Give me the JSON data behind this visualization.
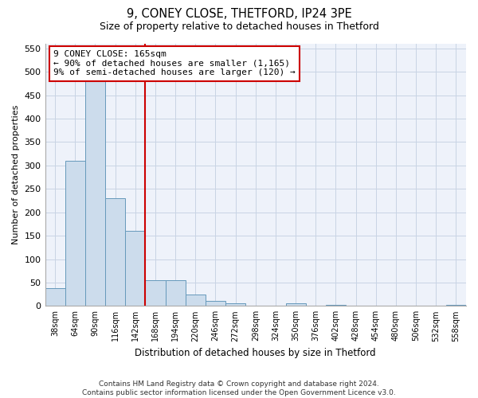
{
  "title1": "9, CONEY CLOSE, THETFORD, IP24 3PE",
  "title2": "Size of property relative to detached houses in Thetford",
  "xlabel": "Distribution of detached houses by size in Thetford",
  "ylabel": "Number of detached properties",
  "categories": [
    "38sqm",
    "64sqm",
    "90sqm",
    "116sqm",
    "142sqm",
    "168sqm",
    "194sqm",
    "220sqm",
    "246sqm",
    "272sqm",
    "298sqm",
    "324sqm",
    "350sqm",
    "376sqm",
    "402sqm",
    "428sqm",
    "454sqm",
    "480sqm",
    "506sqm",
    "532sqm",
    "558sqm"
  ],
  "values": [
    38,
    310,
    510,
    230,
    160,
    55,
    55,
    25,
    10,
    5,
    0,
    0,
    5,
    0,
    2,
    0,
    0,
    0,
    0,
    0,
    2
  ],
  "bar_color": "#ccdcec",
  "bar_edge_color": "#6699bb",
  "marker_line_index": 5,
  "marker_line_color": "#cc0000",
  "annotation_text": "9 CONEY CLOSE: 165sqm\n← 90% of detached houses are smaller (1,165)\n9% of semi-detached houses are larger (120) →",
  "annotation_box_facecolor": "#ffffff",
  "annotation_box_edgecolor": "#cc0000",
  "ylim": [
    0,
    560
  ],
  "yticks": [
    0,
    50,
    100,
    150,
    200,
    250,
    300,
    350,
    400,
    450,
    500,
    550
  ],
  "grid_color": "#c8d4e4",
  "bg_color": "#eef2fa",
  "footer": "Contains HM Land Registry data © Crown copyright and database right 2024.\nContains public sector information licensed under the Open Government Licence v3.0."
}
